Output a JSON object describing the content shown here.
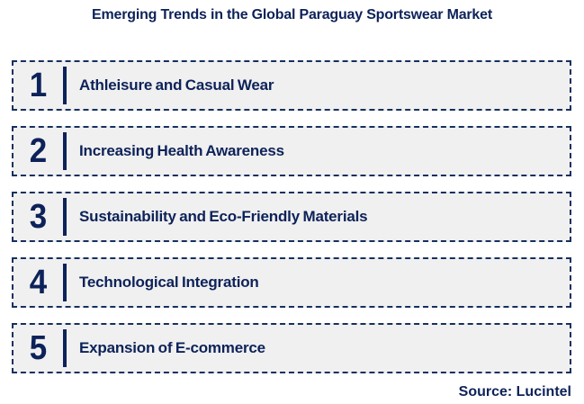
{
  "header": {
    "title": "Emerging Trends in the Global Paraguay Sportswear Market"
  },
  "trends": [
    {
      "number": "1",
      "label": "Athleisure and Casual Wear"
    },
    {
      "number": "2",
      "label": "Increasing Health Awareness"
    },
    {
      "number": "3",
      "label": "Sustainability and Eco-Friendly Materials"
    },
    {
      "number": "4",
      "label": "Technological Integration"
    },
    {
      "number": "5",
      "label": "Expansion of E-commerce"
    }
  ],
  "footer": {
    "source": "Source: Lucintel"
  },
  "colors": {
    "navy": "#0d2259",
    "dashed_border": "#16305e",
    "row_background": "#f0f0f0",
    "page_background": "#ffffff"
  }
}
